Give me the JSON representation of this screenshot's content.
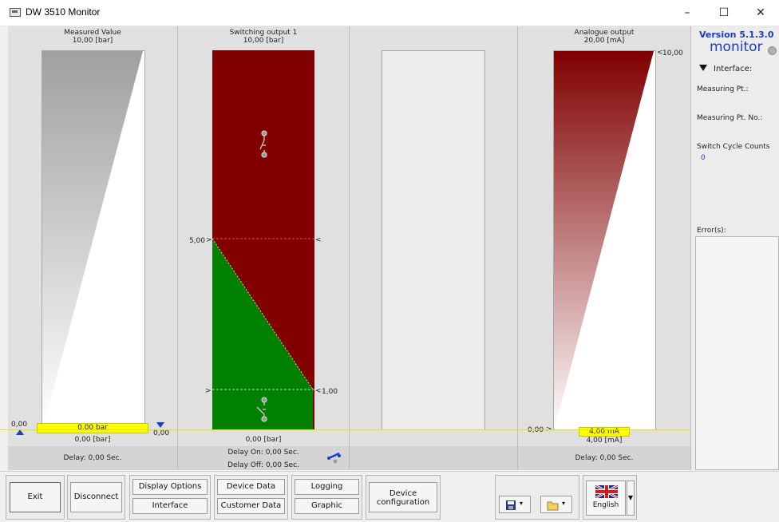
{
  "window": {
    "title": "DW 3510 Monitor",
    "minimize": "–",
    "maximize": "☐",
    "close": "✕"
  },
  "measured": {
    "title": "Measured Value",
    "range": "10,00 [bar]",
    "value_label": "0,00 bar",
    "unit_label": "0,00 [bar]",
    "left_mark": "0,00",
    "right_mark": "0,00",
    "delay": "Delay: 0,00 Sec."
  },
  "switching": {
    "title": "Switching output 1",
    "range": "10,00 [bar]",
    "upper_threshold": "5,00",
    "lower_threshold": "1,00",
    "unit_label": "0,00 [bar]",
    "delay_on": "Delay On: 0,00 Sec.",
    "delay_off": "Delay Off: 0,00 Sec.",
    "colors": {
      "on": "#800000",
      "off": "#008000"
    }
  },
  "analogue": {
    "title": "Analogue output",
    "range": "20,00 [mA]",
    "top_mark": "10,00",
    "bottom_mark": "0,00",
    "value_label": "4,00 mA",
    "unit_label": "4,00 [mA]",
    "delay": "Delay: 0,00 Sec."
  },
  "info": {
    "version": "Version 5.1.3.0",
    "mode": "monitor",
    "interface_label": "Interface:",
    "measuring_pt": "Measuring Pt.:",
    "measuring_pt_no": "Measuring Pt. No.:",
    "switch_cycle_counts": "Switch Cycle Counts",
    "switch_cycle_value": "0",
    "errors": "Error(s):"
  },
  "toolbar": {
    "exit": "Exit",
    "disconnect": "Disconnect",
    "display_options": "Display Options",
    "interface": "Interface",
    "device_data": "Device Data",
    "customer_data": "Customer Data",
    "logging": "Logging",
    "graphic": "Graphic",
    "device_configuration_1": "Device",
    "device_configuration_2": "configuration",
    "language": "English"
  }
}
